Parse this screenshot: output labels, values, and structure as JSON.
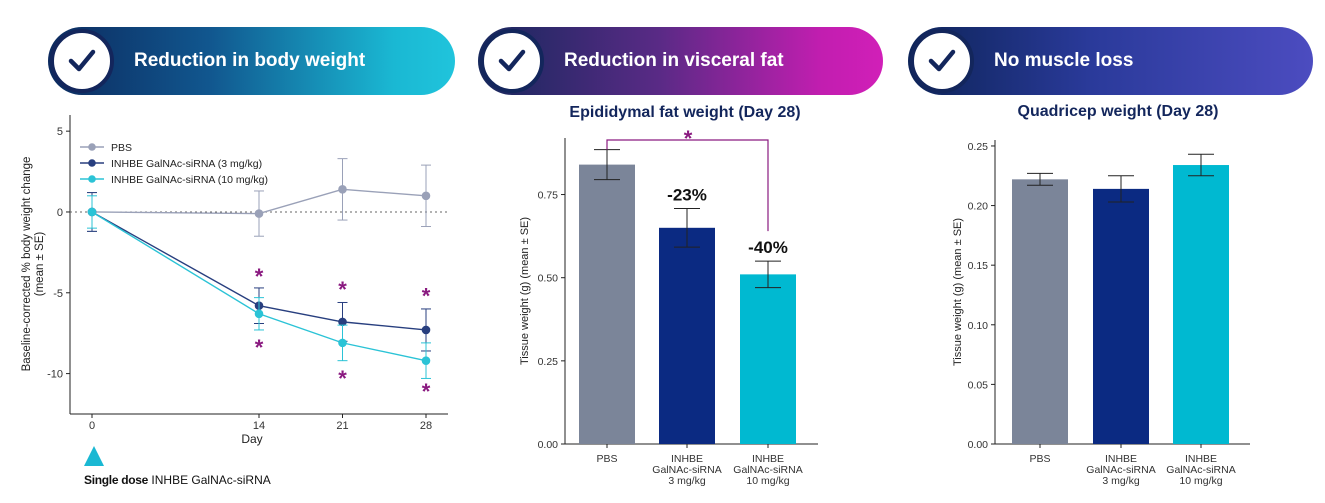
{
  "banners": [
    {
      "label": "Reduction in body weight"
    },
    {
      "label": "Reduction in visceral fat"
    },
    {
      "label": "No muscle loss"
    }
  ],
  "colors": {
    "pbs": "#7b8599",
    "dose3": "#0b2a82",
    "dose10": "#00b9d1",
    "star": "#8a1a80",
    "navy": "#13265c",
    "line_pbs": "#9aa1b8",
    "line_dose3": "#283f7f",
    "line_dose10": "#2bc3d6"
  },
  "chart_data": [
    {
      "type": "line",
      "xlabel": "Day",
      "ylabel": "Baseline-corrected % body weight change (mean ± SE)",
      "ylabel_lines": [
        "Baseline-corrected % body weight change",
        "(mean ± SE)"
      ],
      "x": [
        0,
        14,
        21,
        28
      ],
      "xticks": [
        "0",
        "14",
        "21",
        "28"
      ],
      "xlim": [
        0,
        28
      ],
      "ylim": [
        -12.5,
        6
      ],
      "yticks": [
        5,
        0,
        -5,
        -10
      ],
      "ytick_labels": [
        "5",
        "0",
        "-5",
        "-10"
      ],
      "reference_line": 0,
      "legend_position": "top-left",
      "series": [
        {
          "name": "PBS",
          "color_key": "line_pbs",
          "values": [
            0,
            -0.1,
            1.4,
            1.0
          ],
          "se": [
            1.2,
            1.4,
            1.9,
            1.9
          ]
        },
        {
          "name": "INHBE GalNAc-siRNA (3 mg/kg)",
          "color_key": "line_dose3",
          "values": [
            0,
            -5.8,
            -6.8,
            -7.3
          ],
          "se": [
            1.2,
            1.1,
            1.2,
            1.3
          ]
        },
        {
          "name": "INHBE GalNAc-siRNA (10 mg/kg)",
          "color_key": "line_dose10",
          "values": [
            0,
            -6.3,
            -8.1,
            -9.2
          ],
          "se": [
            1.0,
            1.0,
            1.1,
            1.1
          ]
        }
      ],
      "significance": [
        {
          "x": 14,
          "y": -3.9,
          "label": "*"
        },
        {
          "x": 14,
          "y": -8.3,
          "label": "*"
        },
        {
          "x": 21,
          "y": -4.7,
          "label": "*"
        },
        {
          "x": 21,
          "y": -10.2,
          "label": "*"
        },
        {
          "x": 28,
          "y": -5.1,
          "label": "*"
        },
        {
          "x": 28,
          "y": -11.0,
          "label": "*"
        }
      ],
      "dose_marker": {
        "x": 0,
        "label_bold": "Single dose",
        "label": "INHBE GalNAc-siRNA"
      }
    },
    {
      "type": "bar",
      "title": "Epididymal fat weight (Day 28)",
      "ylabel": "Tissue weight (g) (mean ± SE)",
      "categories": [
        [
          "PBS"
        ],
        [
          "INHBE",
          "GalNAc-siRNA",
          "3 mg/kg"
        ],
        [
          "INHBE",
          "GalNAc-siRNA",
          "10 mg/kg"
        ]
      ],
      "values": [
        0.84,
        0.65,
        0.51
      ],
      "se": [
        0.045,
        0.058,
        0.04
      ],
      "color_keys": [
        "pbs",
        "dose3",
        "dose10"
      ],
      "annotations": [
        "",
        "-23%",
        "-40%"
      ],
      "ylim": [
        0,
        0.92
      ],
      "yticks": [
        0.0,
        0.25,
        0.5,
        0.75
      ],
      "ytick_labels": [
        "0.00",
        "0.25",
        "0.50",
        "0.75"
      ],
      "significance_bracket": {
        "from": 0,
        "to": 2,
        "label": "*"
      }
    },
    {
      "type": "bar",
      "title": "Quadricep weight (Day 28)",
      "ylabel": "Tissue weight (g) (mean ± SE)",
      "categories": [
        [
          "PBS"
        ],
        [
          "INHBE",
          "GalNAc-siRNA",
          "3 mg/kg"
        ],
        [
          "INHBE",
          "GalNAc-siRNA",
          "10 mg/kg"
        ]
      ],
      "values": [
        0.222,
        0.214,
        0.234
      ],
      "se": [
        0.005,
        0.011,
        0.009
      ],
      "color_keys": [
        "pbs",
        "dose3",
        "dose10"
      ],
      "ylim": [
        0,
        0.255
      ],
      "yticks": [
        0.0,
        0.05,
        0.1,
        0.15,
        0.2,
        0.25
      ],
      "ytick_labels": [
        "0.00",
        "0.05",
        "0.10",
        "0.15",
        "0.20",
        "0.25"
      ]
    }
  ]
}
